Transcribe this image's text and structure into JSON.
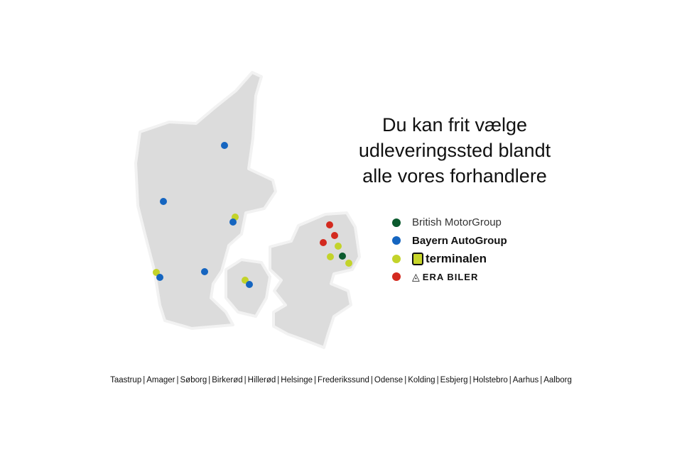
{
  "headline": [
    "Du kan frit vælge",
    "udleveringssted blandt",
    "alle vores forhandlere"
  ],
  "legend": [
    {
      "label": "British MotorGroup",
      "color": "#0b5a2e",
      "icon": "dot"
    },
    {
      "label": "Bayern AutoGroup",
      "color": "#1565c0",
      "icon": "dot"
    },
    {
      "label": "terminalen",
      "color": "#c3d32a",
      "icon": "terminalen-logo"
    },
    {
      "label": "ERA BILER",
      "color": "#d32a1f",
      "icon": "era-logo"
    }
  ],
  "cities": [
    "Taastrup",
    "Amager",
    "Søborg",
    "Birkerød",
    "Hillerød",
    "Helsinge",
    "Frederikssund",
    "Odense",
    "Kolding",
    "Esbjerg",
    "Holstebro",
    "Aarhus",
    "Aalborg"
  ],
  "city_separator": "|"
}
